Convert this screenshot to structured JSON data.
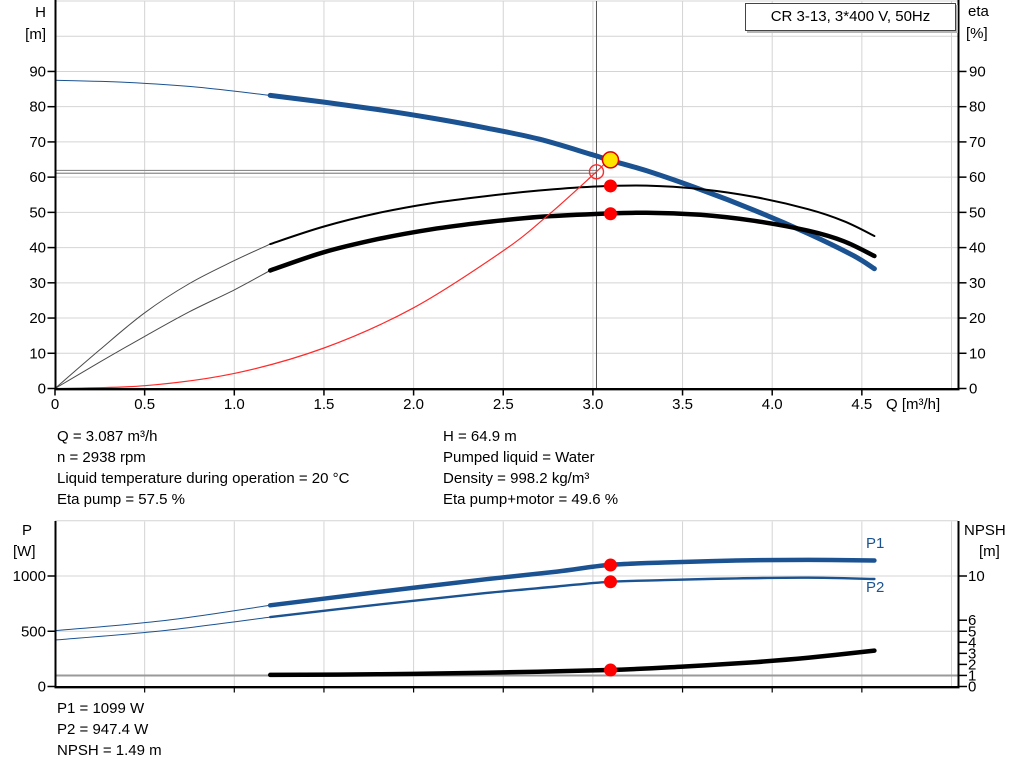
{
  "title_box": {
    "text": "CR 3-13, 3*400 V, 50Hz"
  },
  "top_chart": {
    "y_left": {
      "name": "H",
      "unit": "[m]"
    },
    "y_right": {
      "name": "eta",
      "unit": "[%]"
    },
    "x_label": "Q [m³/h]"
  },
  "bottom_chart": {
    "y_left": {
      "name": "P",
      "unit": "[W]"
    },
    "y_right": {
      "name": "NPSH",
      "unit": "[m]"
    },
    "p1_label": "P1",
    "p2_label": "P2"
  },
  "info": {
    "left": [
      "Q = 3.087 m³/h",
      "n = 2938 rpm",
      "Liquid temperature during operation = 20 °C",
      "Eta pump = 57.5 %"
    ],
    "right": [
      "H = 64.9 m",
      "Pumped liquid = Water",
      "Density = 998.2 kg/m³",
      "Eta pump+motor = 49.6 %"
    ]
  },
  "results": [
    "P1 = 1099 W",
    "P2 = 947.4 W",
    "NPSH = 1.49 m"
  ],
  "colors": {
    "curve_blue": "#1b5291",
    "curve_black": "#000000",
    "system_red": "#ff2a2a",
    "duty_yellow": "#ffe400",
    "marker_red": "#fe0000",
    "grid": "#d4d4d4",
    "ref_gray": "#8c8c8c"
  },
  "chart_data": [
    {
      "type": "line",
      "title": "CR 3-13, 3*400 V, 50Hz",
      "xlabel": "Q [m³/h]",
      "x_range": [
        0,
        5.04
      ],
      "x_ticks": {
        "values": [
          0,
          0.5,
          1,
          1.5,
          2,
          2.5,
          3,
          3.5,
          4,
          4.5
        ],
        "labels": [
          "0",
          "0.5",
          "1.0",
          "1.5",
          "2.0",
          "2.5",
          "3.0",
          "3.5",
          "4.0",
          "4.5"
        ]
      },
      "grid_x": [
        0.5,
        1,
        1.5,
        2,
        2.5,
        3,
        3.5,
        4,
        4.5,
        5
      ],
      "y_left": {
        "label": "H [m]",
        "range": [
          0,
          110
        ],
        "ticks": [
          0,
          10,
          20,
          30,
          40,
          50,
          60,
          70,
          80,
          90
        ]
      },
      "y_right": {
        "label": "eta [%]",
        "range": [
          0,
          110
        ],
        "ticks": [
          0,
          10,
          20,
          30,
          40,
          50,
          60,
          70,
          80,
          90
        ]
      },
      "grid_h": [
        10,
        20,
        30,
        40,
        50,
        60,
        70,
        80,
        90,
        100,
        110
      ],
      "ref_lines": {
        "requested_q": 3.02,
        "requested_h_values": [
          61.9,
          61.1
        ]
      },
      "series": [
        {
          "name": "head-curve",
          "axis": "H",
          "color": "#1b5291",
          "width": 5,
          "thin_width": 1,
          "thin": [
            [
              0,
              87.5
            ],
            [
              0.4,
              86.9
            ],
            [
              0.8,
              85.5
            ],
            [
              1.2,
              83.2
            ]
          ],
          "points": [
            [
              1.2,
              83.2
            ],
            [
              1.5,
              81.3
            ],
            [
              1.8,
              79.2
            ],
            [
              2.1,
              76.8
            ],
            [
              2.4,
              74.0
            ],
            [
              2.7,
              70.8
            ],
            [
              3.0,
              66.3
            ],
            [
              3.087,
              64.9
            ],
            [
              3.3,
              61.8
            ],
            [
              3.6,
              56.5
            ],
            [
              3.9,
              50.6
            ],
            [
              4.2,
              44.0
            ],
            [
              4.45,
              37.8
            ],
            [
              4.57,
              34.0
            ]
          ]
        },
        {
          "name": "eta-pump-curve",
          "axis": "eta",
          "color": "#000000",
          "width": 2,
          "thin_width": 1,
          "thin_color": "#4a4a4a",
          "thin": [
            [
              0,
              0
            ],
            [
              0.25,
              11.0
            ],
            [
              0.5,
              21.5
            ],
            [
              0.75,
              29.8
            ],
            [
              1.0,
              36.3
            ],
            [
              1.2,
              41.0
            ]
          ],
          "points": [
            [
              1.2,
              41.0
            ],
            [
              1.5,
              46.0
            ],
            [
              1.8,
              49.8
            ],
            [
              2.1,
              52.6
            ],
            [
              2.4,
              54.6
            ],
            [
              2.7,
              56.2
            ],
            [
              3.0,
              57.3
            ],
            [
              3.3,
              57.6
            ],
            [
              3.6,
              56.6
            ],
            [
              3.9,
              54.4
            ],
            [
              4.2,
              50.9
            ],
            [
              4.4,
              47.5
            ],
            [
              4.57,
              43.3
            ]
          ]
        },
        {
          "name": "eta-pump-motor-curve",
          "axis": "eta",
          "color": "#000000",
          "width": 4.5,
          "thin_width": 1,
          "thin_color": "#4a4a4a",
          "thin": [
            [
              0,
              0
            ],
            [
              0.25,
              7.5
            ],
            [
              0.5,
              14.8
            ],
            [
              0.75,
              21.8
            ],
            [
              1.0,
              28.0
            ],
            [
              1.2,
              33.5
            ]
          ],
          "points": [
            [
              1.2,
              33.5
            ],
            [
              1.5,
              38.7
            ],
            [
              1.8,
              42.4
            ],
            [
              2.1,
              45.2
            ],
            [
              2.4,
              47.2
            ],
            [
              2.7,
              48.7
            ],
            [
              3.0,
              49.5
            ],
            [
              3.3,
              49.9
            ],
            [
              3.6,
              49.3
            ],
            [
              3.9,
              47.6
            ],
            [
              4.2,
              44.8
            ],
            [
              4.4,
              41.8
            ],
            [
              4.57,
              37.6
            ]
          ]
        },
        {
          "name": "system-curve",
          "axis": "H",
          "color": "#ff2a2a",
          "width": 1.2,
          "points": [
            [
              0,
              0
            ],
            [
              0.5,
              0.8
            ],
            [
              1.0,
              4.3
            ],
            [
              1.5,
              11.5
            ],
            [
              2.0,
              22.9
            ],
            [
              2.5,
              39.1
            ],
            [
              2.75,
              49.2
            ],
            [
              3.0,
              60.6
            ],
            [
              3.087,
              64.9
            ]
          ]
        }
      ],
      "markers": [
        {
          "name": "duty-point",
          "axis": "H",
          "x": 3.087,
          "y": 64.9,
          "style": "yellow"
        },
        {
          "name": "requested-duty-point",
          "axis": "H",
          "x": 3.02,
          "y": 61.5,
          "style": "open-red"
        },
        {
          "name": "eta-pump-duty",
          "axis": "eta",
          "x": 3.087,
          "y": 57.5,
          "style": "red"
        },
        {
          "name": "eta-pump-motor-duty",
          "axis": "eta",
          "x": 3.087,
          "y": 49.6,
          "style": "red"
        }
      ]
    },
    {
      "type": "line",
      "x_range": [
        0,
        5.04
      ],
      "grid_x": [
        0.5,
        1,
        1.5,
        2,
        2.5,
        3,
        3.5,
        4,
        4.5,
        5
      ],
      "y_left": {
        "label": "P [W]",
        "range": [
          0,
          1495
        ],
        "ticks": [
          0,
          500,
          1000
        ]
      },
      "y_right": {
        "label": "NPSH [m]",
        "range": [
          0,
          14.9
        ],
        "ticks": [
          0,
          1,
          2,
          3,
          4,
          5,
          6,
          10
        ]
      },
      "grid_p": [
        500,
        1000,
        1500
      ],
      "npsh_ref_line": 1.0,
      "series": [
        {
          "name": "p1-curve",
          "axis": "P",
          "color": "#1b5291",
          "width": 4.5,
          "thin_width": 1,
          "label": "P1",
          "thin": [
            [
              0,
              505
            ],
            [
              0.6,
              595
            ],
            [
              1.2,
              735
            ]
          ],
          "points": [
            [
              1.2,
              735
            ],
            [
              1.8,
              855
            ],
            [
              2.4,
              970
            ],
            [
              2.8,
              1040
            ],
            [
              3.087,
              1100
            ],
            [
              3.4,
              1122
            ],
            [
              3.8,
              1140
            ],
            [
              4.2,
              1146
            ],
            [
              4.57,
              1140
            ]
          ]
        },
        {
          "name": "p2-curve",
          "axis": "P",
          "color": "#1b5291",
          "width": 2.4,
          "thin_width": 1,
          "label": "P2",
          "thin": [
            [
              0,
              420
            ],
            [
              0.6,
              505
            ],
            [
              1.2,
              628
            ]
          ],
          "points": [
            [
              1.2,
              628
            ],
            [
              1.8,
              740
            ],
            [
              2.4,
              845
            ],
            [
              2.8,
              905
            ],
            [
              3.087,
              947
            ],
            [
              3.4,
              963
            ],
            [
              3.8,
              978
            ],
            [
              4.2,
              985
            ],
            [
              4.57,
              973
            ]
          ]
        },
        {
          "name": "npsh-curve",
          "axis": "N",
          "color": "#000000",
          "width": 4.5,
          "points": [
            [
              1.2,
              1.05
            ],
            [
              1.8,
              1.1
            ],
            [
              2.4,
              1.25
            ],
            [
              3.087,
              1.49
            ],
            [
              3.5,
              1.8
            ],
            [
              3.9,
              2.2
            ],
            [
              4.2,
              2.6
            ],
            [
              4.57,
              3.25
            ]
          ]
        }
      ],
      "markers": [
        {
          "name": "p1-duty",
          "axis": "P",
          "x": 3.087,
          "y": 1099,
          "style": "red"
        },
        {
          "name": "p2-duty",
          "axis": "P",
          "x": 3.087,
          "y": 947.4,
          "style": "red"
        },
        {
          "name": "npsh-duty",
          "axis": "N",
          "x": 3.087,
          "y": 1.49,
          "style": "red"
        }
      ]
    }
  ]
}
